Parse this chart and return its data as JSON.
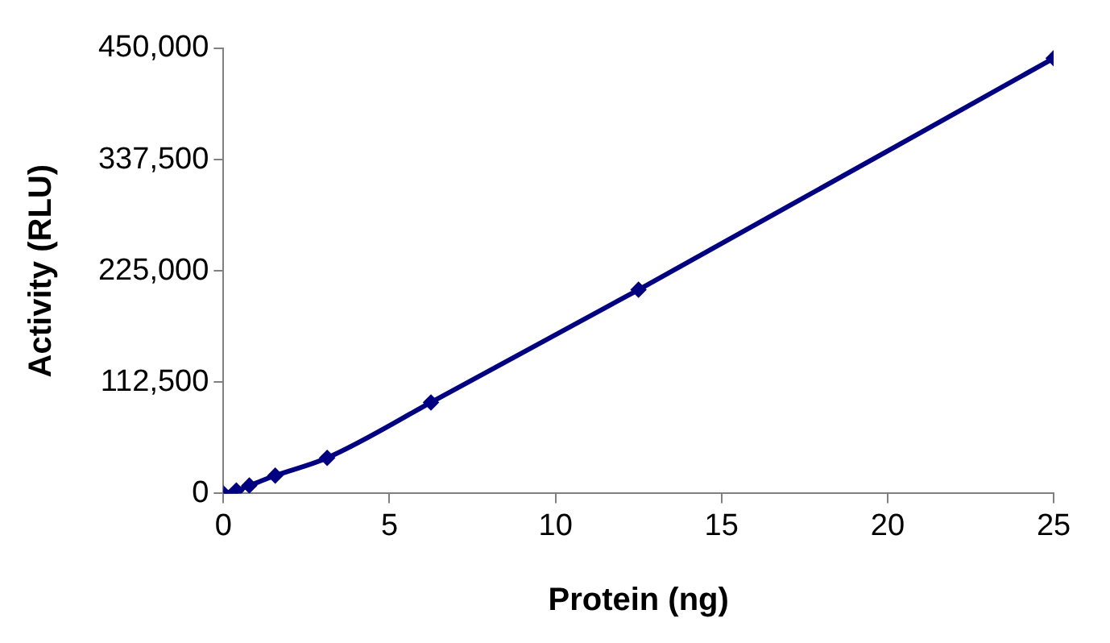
{
  "chart_data": {
    "type": "line",
    "xlabel": "Protein (ng)",
    "ylabel": "Activity (RLU)",
    "x": [
      0,
      0.39,
      0.78,
      1.56,
      3.125,
      6.25,
      12.5,
      25
    ],
    "series": [
      {
        "color": "#000080",
        "values": [
          0,
          3000,
          8000,
          18000,
          36000,
          92000,
          206000,
          440000
        ]
      }
    ],
    "xlim": [
      0,
      25
    ],
    "xticks": [
      0,
      5,
      10,
      15,
      20,
      25
    ],
    "ylim": [
      0,
      450000
    ],
    "yticks": [
      {
        "value": 0,
        "label": "0"
      },
      {
        "value": 112500,
        "label": "112,500"
      },
      {
        "value": 225000,
        "label": "225,000"
      },
      {
        "value": 337500,
        "label": "337,500"
      },
      {
        "value": 450000,
        "label": "450,000"
      }
    ],
    "marker": "diamond",
    "line_style": "solid",
    "grid": false,
    "legend": false
  }
}
